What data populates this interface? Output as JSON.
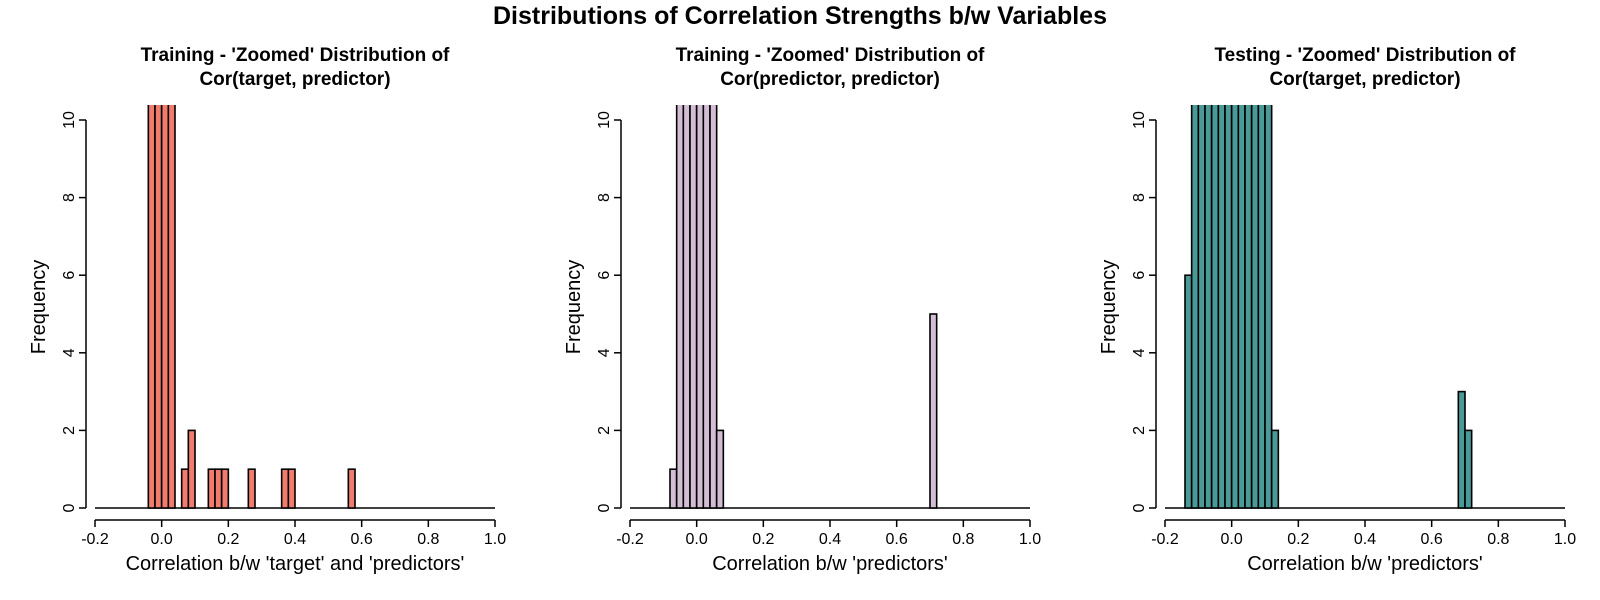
{
  "title": "Distributions of Correlation Strengths b/w Variables",
  "chart_data": [
    {
      "type": "bar",
      "title_lines": [
        "Training - 'Zoomed' Distribution of",
        "Cor(target, predictor)"
      ],
      "xlabel": "Correlation b/w 'target' and 'predictors'",
      "ylabel": "Frequency",
      "xlim": [
        -0.2,
        1.0
      ],
      "ylim": [
        0,
        10
      ],
      "xticks": [
        "-0.2",
        "0.0",
        "0.2",
        "0.4",
        "0.6",
        "0.8",
        "1.0"
      ],
      "yticks": [
        "0",
        "2",
        "4",
        "6",
        "8",
        "10"
      ],
      "bin_width": 0.02,
      "fill": "#f17c6d",
      "bins": [
        {
          "x0": -0.04,
          "count": 10.5
        },
        {
          "x0": -0.02,
          "count": 10.5
        },
        {
          "x0": 0.0,
          "count": 10.5
        },
        {
          "x0": 0.02,
          "count": 10.5
        },
        {
          "x0": 0.06,
          "count": 1
        },
        {
          "x0": 0.08,
          "count": 2
        },
        {
          "x0": 0.14,
          "count": 1
        },
        {
          "x0": 0.16,
          "count": 1
        },
        {
          "x0": 0.18,
          "count": 1
        },
        {
          "x0": 0.26,
          "count": 1
        },
        {
          "x0": 0.36,
          "count": 1
        },
        {
          "x0": 0.38,
          "count": 1
        },
        {
          "x0": 0.56,
          "count": 1
        }
      ]
    },
    {
      "type": "bar",
      "title_lines": [
        "Training - 'Zoomed' Distribution of",
        "Cor(predictor, predictor)"
      ],
      "xlabel": "Correlation b/w 'predictors'",
      "ylabel": "Frequency",
      "xlim": [
        -0.2,
        1.0
      ],
      "ylim": [
        0,
        10
      ],
      "xticks": [
        "-0.2",
        "0.0",
        "0.2",
        "0.4",
        "0.6",
        "0.8",
        "1.0"
      ],
      "yticks": [
        "0",
        "2",
        "4",
        "6",
        "8",
        "10"
      ],
      "bin_width": 0.02,
      "fill": "#d2bdd4",
      "bins": [
        {
          "x0": -0.08,
          "count": 1
        },
        {
          "x0": -0.06,
          "count": 10.5
        },
        {
          "x0": -0.04,
          "count": 10.5
        },
        {
          "x0": -0.02,
          "count": 10.5
        },
        {
          "x0": 0.0,
          "count": 10.5
        },
        {
          "x0": 0.02,
          "count": 10.5
        },
        {
          "x0": 0.04,
          "count": 10.5
        },
        {
          "x0": 0.06,
          "count": 2
        },
        {
          "x0": 0.7,
          "count": 5
        }
      ]
    },
    {
      "type": "bar",
      "title_lines": [
        "Testing - 'Zoomed' Distribution of",
        "Cor(target, predictor)"
      ],
      "xlabel": "Correlation b/w 'predictors'",
      "ylabel": "Frequency",
      "xlim": [
        -0.2,
        1.0
      ],
      "ylim": [
        0,
        10
      ],
      "xticks": [
        "-0.2",
        "0.0",
        "0.2",
        "0.4",
        "0.6",
        "0.8",
        "1.0"
      ],
      "yticks": [
        "0",
        "2",
        "4",
        "6",
        "8",
        "10"
      ],
      "bin_width": 0.02,
      "fill": "#4a9a98",
      "bins": [
        {
          "x0": -0.14,
          "count": 6
        },
        {
          "x0": -0.12,
          "count": 10.5
        },
        {
          "x0": -0.1,
          "count": 10.5
        },
        {
          "x0": -0.08,
          "count": 10.5
        },
        {
          "x0": -0.06,
          "count": 10.5
        },
        {
          "x0": -0.04,
          "count": 10.5
        },
        {
          "x0": -0.02,
          "count": 10.5
        },
        {
          "x0": 0.0,
          "count": 10.5
        },
        {
          "x0": 0.02,
          "count": 10.5
        },
        {
          "x0": 0.04,
          "count": 10.5
        },
        {
          "x0": 0.06,
          "count": 10.5
        },
        {
          "x0": 0.08,
          "count": 10.5
        },
        {
          "x0": 0.1,
          "count": 10.5
        },
        {
          "x0": 0.12,
          "count": 2
        },
        {
          "x0": 0.68,
          "count": 3
        },
        {
          "x0": 0.7,
          "count": 2
        }
      ]
    }
  ]
}
